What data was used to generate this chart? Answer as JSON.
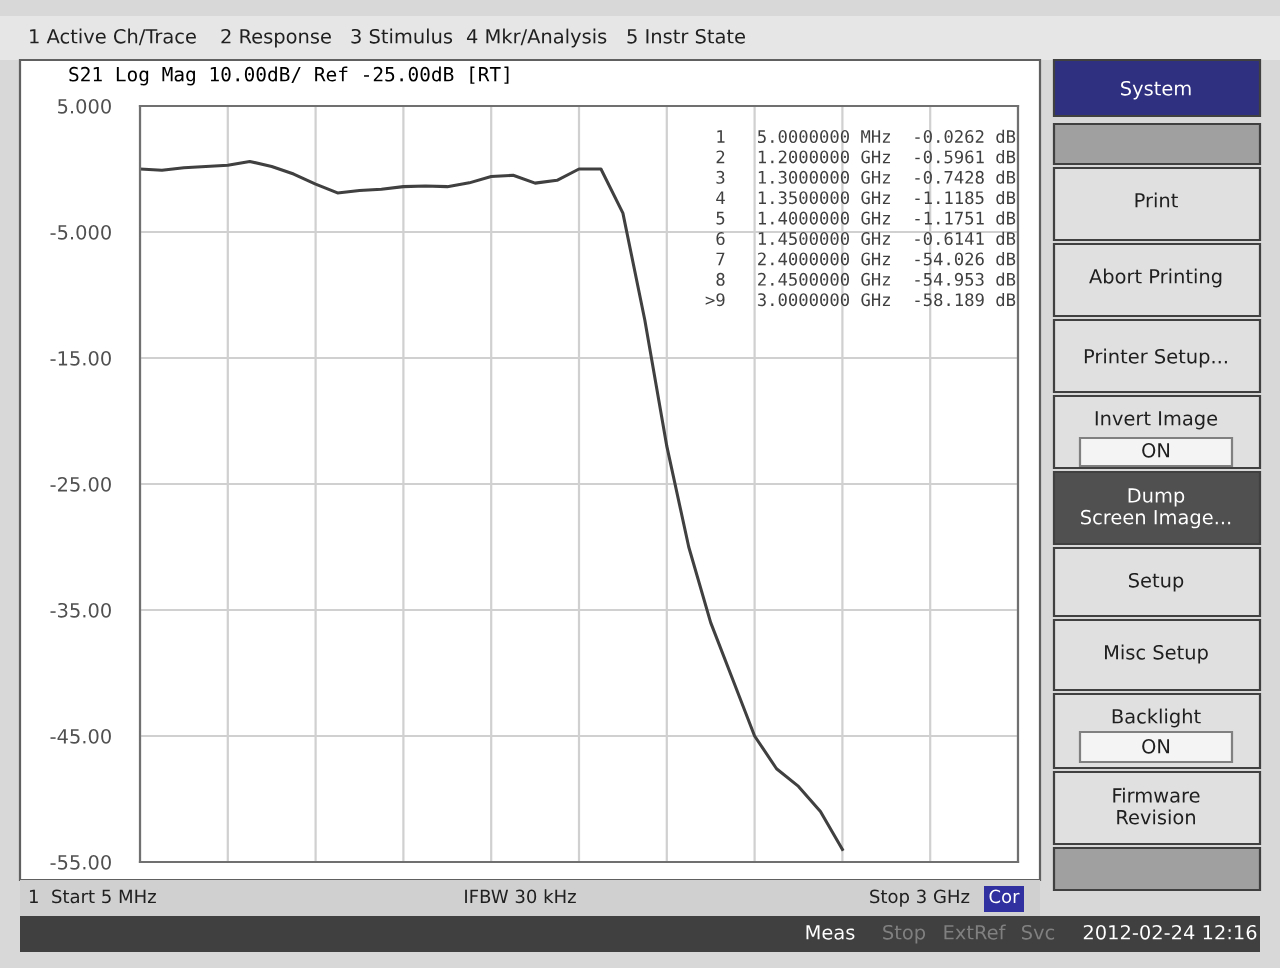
{
  "chart_data": {
    "type": "line",
    "title": "S21 Log Mag 10.00dB/ Ref -25.00dB [RT]",
    "categories": [
      null,
      null,
      null,
      null,
      null,
      null,
      null,
      null,
      null,
      null,
      null,
      null,
      null,
      null,
      null,
      null,
      null,
      null,
      null,
      null,
      null,
      null,
      null,
      null,
      null,
      null,
      null,
      null,
      null,
      null,
      null,
      null,
      null,
      null,
      null,
      null,
      null,
      null,
      null,
      null,
      null
    ],
    "series": [
      {
        "color": "#404040",
        "values": [
          0.0,
          -0.1,
          0.1,
          0.2,
          0.3,
          0.6,
          0.2,
          -0.4,
          -1.2,
          -1.9,
          -1.7,
          -1.6,
          -1.4,
          -1.35,
          -1.4,
          -1.1,
          -0.6,
          -0.5,
          -1.12,
          -0.9,
          0.0,
          0.0,
          -3.5,
          -12,
          -22,
          -30,
          -36,
          -40.5,
          -45,
          -47.6,
          -49,
          -51,
          -54.0,
          null,
          null,
          null,
          null,
          null,
          null,
          null,
          null
        ]
      }
    ],
    "ylim": [
      -55,
      5
    ],
    "yticks": [
      {
        "value": 5,
        "label": "5.000"
      },
      {
        "value": -5,
        "label": "-5.000"
      },
      {
        "value": -15,
        "label": "-15.00"
      },
      {
        "value": -25,
        "label": "-25.00"
      },
      {
        "value": -35,
        "label": "-35.00"
      },
      {
        "value": -45,
        "label": "-45.00"
      },
      {
        "value": -55,
        "label": "-55.00"
      }
    ],
    "grid": true,
    "line_style": "solid",
    "annotations": [
      "1 Active Ch/Trace",
      "2 Response",
      "3 Stimulus",
      "4 Mkr/Analysis",
      "5 Instr State",
      "1   5.0000000 MHz  -0.0262 dB",
      "2   1.2000000 GHz  -0.5961 dB",
      "3   1.3000000 GHz  -0.7428 dB",
      "4   1.3500000 GHz  -1.1185 dB",
      "5   1.4000000 GHz  -1.1751 dB",
      "6   1.4500000 GHz  -0.6141 dB",
      "7   2.4000000 GHz  -54.026 dB",
      "8   2.4500000 GHz  -54.953 dB",
      ">9   3.0000000 GHz  -58.189 dB",
      "1  Start 5 MHz",
      "IFBW 30 kHz",
      "Stop 3 GHz",
      "Cor",
      "System",
      "Print",
      "Abort Printing",
      "Printer Setup...",
      "Invert Image",
      "ON",
      "Dump\nScreen Image...",
      "Setup",
      "Misc Setup",
      "Backlight",
      "ON",
      "Firmware\nRevision",
      "Meas",
      "Stop",
      "ExtRef",
      "Svc",
      "2012-02-24 12:16"
    ]
  }
}
